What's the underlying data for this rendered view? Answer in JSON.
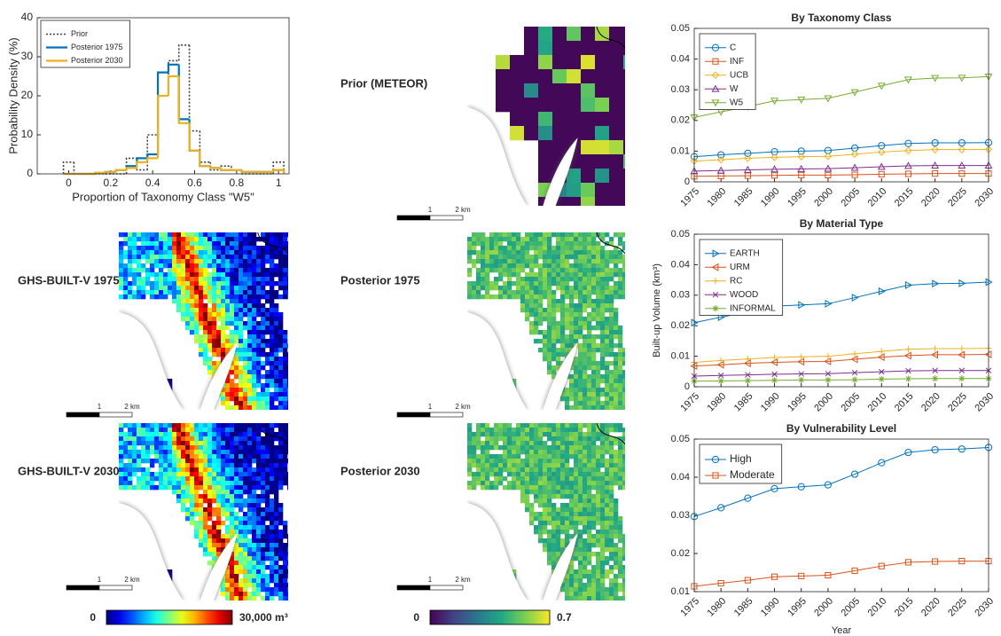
{
  "chart_data": [
    {
      "type": "histogram",
      "ylabel": "Probability Density (%)",
      "xlabel": "Proportion of Taxonomy Class \"W5\"",
      "bins": [
        -0.025,
        0.025,
        0.075,
        0.125,
        0.175,
        0.225,
        0.275,
        0.325,
        0.375,
        0.425,
        0.475,
        0.525,
        0.575,
        0.625,
        0.675,
        0.725,
        0.775,
        0.825,
        0.875,
        0.925,
        0.975,
        1.025
      ],
      "series": [
        {
          "name": "Prior",
          "color": "#404040",
          "style": "dotted",
          "values": [
            3,
            0,
            0,
            0,
            0,
            0,
            4,
            1,
            10,
            20,
            29,
            33,
            11,
            3,
            1,
            2,
            1,
            0,
            0,
            0,
            3
          ]
        },
        {
          "name": "Posterior 1975",
          "color": "#0072BD",
          "style": "solid",
          "values": [
            0,
            0,
            0,
            0.2,
            0.5,
            1,
            2,
            4,
            5,
            26,
            28,
            14,
            6,
            2,
            1.5,
            1,
            1,
            0.5,
            0.5,
            0.5,
            1
          ]
        },
        {
          "name": "Posterior 2030",
          "color": "#EDB120",
          "style": "solid",
          "values": [
            0,
            0,
            0,
            0.3,
            0.5,
            1,
            1.5,
            3,
            4,
            20,
            25,
            13,
            6,
            2,
            1.5,
            1,
            1,
            0.5,
            0.5,
            0.5,
            1
          ]
        }
      ],
      "xlim": [
        -0.15,
        1.05
      ],
      "ylim": [
        0,
        40
      ],
      "xticks": [
        0,
        0.2,
        0.4,
        0.6,
        0.8,
        1
      ],
      "yticks": [
        0,
        10,
        20,
        30,
        40
      ],
      "legend": "upper-left"
    },
    {
      "type": "line",
      "title": "By Taxonomy Class",
      "x": [
        1975,
        1980,
        1985,
        1990,
        1995,
        2000,
        2005,
        2010,
        2015,
        2020,
        2025,
        2030
      ],
      "series": [
        {
          "name": "C",
          "color": "#0072BD",
          "marker": "circle",
          "values": [
            0.0082,
            0.0088,
            0.0093,
            0.0098,
            0.01,
            0.0102,
            0.011,
            0.0118,
            0.0125,
            0.0127,
            0.0127,
            0.0128
          ]
        },
        {
          "name": "INF",
          "color": "#D95319",
          "marker": "square",
          "values": [
            0.0018,
            0.0019,
            0.002,
            0.0021,
            0.0022,
            0.0022,
            0.0023,
            0.0025,
            0.0026,
            0.0027,
            0.0027,
            0.0027
          ]
        },
        {
          "name": "UCB",
          "color": "#EDB120",
          "marker": "diamond",
          "values": [
            0.0068,
            0.0072,
            0.0077,
            0.008,
            0.0082,
            0.0083,
            0.009,
            0.0097,
            0.0102,
            0.0105,
            0.0105,
            0.0106
          ]
        },
        {
          "name": "W",
          "color": "#7E2F8E",
          "marker": "triangle-up",
          "values": [
            0.0035,
            0.0037,
            0.0039,
            0.0041,
            0.0042,
            0.0043,
            0.0046,
            0.0049,
            0.0052,
            0.0053,
            0.0053,
            0.0053
          ]
        },
        {
          "name": "W5",
          "color": "#77AC30",
          "marker": "triangle-down",
          "values": [
            0.021,
            0.0228,
            0.0245,
            0.0264,
            0.0268,
            0.0272,
            0.0292,
            0.0313,
            0.0333,
            0.0338,
            0.0339,
            0.0343
          ]
        }
      ],
      "xlim": [
        1975,
        2030
      ],
      "ylim": [
        0,
        0.05
      ],
      "xticks": [
        1975,
        1980,
        1985,
        1990,
        1995,
        2000,
        2005,
        2010,
        2015,
        2020,
        2025,
        2030
      ],
      "yticks": [
        0,
        0.01,
        0.02,
        0.03,
        0.04,
        0.05
      ],
      "legend": "upper-left"
    },
    {
      "type": "line",
      "title": "By Material Type",
      "ylabel": "Built-up Volume (km³)",
      "x": [
        1975,
        1980,
        1985,
        1990,
        1995,
        2000,
        2005,
        2010,
        2015,
        2020,
        2025,
        2030
      ],
      "series": [
        {
          "name": "EARTH",
          "color": "#0072BD",
          "marker": "triangle-right",
          "values": [
            0.021,
            0.0228,
            0.0245,
            0.0264,
            0.0268,
            0.0272,
            0.0292,
            0.0313,
            0.0333,
            0.0338,
            0.0339,
            0.0343
          ]
        },
        {
          "name": "URM",
          "color": "#D95319",
          "marker": "triangle-left",
          "values": [
            0.0068,
            0.0072,
            0.0077,
            0.008,
            0.0082,
            0.0083,
            0.009,
            0.0097,
            0.0102,
            0.0105,
            0.0105,
            0.0106
          ]
        },
        {
          "name": "RC",
          "color": "#EDB120",
          "marker": "plus",
          "values": [
            0.008,
            0.0086,
            0.0091,
            0.0096,
            0.0098,
            0.01,
            0.0108,
            0.0116,
            0.0123,
            0.0125,
            0.0125,
            0.0126
          ]
        },
        {
          "name": "WOOD",
          "color": "#7E2F8E",
          "marker": "x",
          "values": [
            0.0035,
            0.0037,
            0.0039,
            0.0041,
            0.0042,
            0.0043,
            0.0046,
            0.0049,
            0.0052,
            0.0053,
            0.0053,
            0.0053
          ]
        },
        {
          "name": "INFORMAL",
          "color": "#77AC30",
          "marker": "asterisk",
          "values": [
            0.0018,
            0.0019,
            0.002,
            0.0021,
            0.0022,
            0.0022,
            0.0023,
            0.0025,
            0.0026,
            0.0027,
            0.0027,
            0.0027
          ]
        }
      ],
      "xlim": [
        1975,
        2030
      ],
      "ylim": [
        0,
        0.05
      ],
      "xticks": [
        1975,
        1980,
        1985,
        1990,
        1995,
        2000,
        2005,
        2010,
        2015,
        2020,
        2025,
        2030
      ],
      "yticks": [
        0,
        0.01,
        0.02,
        0.03,
        0.04,
        0.05
      ],
      "legend": "upper-left"
    },
    {
      "type": "line",
      "title": "By Vulnerability Level",
      "xlabel": "Year",
      "x": [
        1975,
        1980,
        1985,
        1990,
        1995,
        2000,
        2005,
        2010,
        2015,
        2020,
        2025,
        2030
      ],
      "series": [
        {
          "name": "High",
          "color": "#0072BD",
          "marker": "circle",
          "values": [
            0.0297,
            0.032,
            0.0345,
            0.037,
            0.0375,
            0.038,
            0.0408,
            0.0438,
            0.0465,
            0.0472,
            0.0474,
            0.0478
          ]
        },
        {
          "name": "Moderate",
          "color": "#D95319",
          "marker": "square",
          "values": [
            0.0114,
            0.0122,
            0.013,
            0.0139,
            0.0141,
            0.0143,
            0.0155,
            0.0167,
            0.0177,
            0.0179,
            0.018,
            0.018
          ]
        }
      ],
      "xlim": [
        1975,
        2030
      ],
      "ylim": [
        0.01,
        0.05
      ],
      "xticks": [
        1975,
        1980,
        1985,
        1990,
        1995,
        2000,
        2005,
        2010,
        2015,
        2020,
        2025,
        2030
      ],
      "yticks": [
        0.01,
        0.02,
        0.03,
        0.04,
        0.05
      ],
      "legend": "upper-left"
    }
  ],
  "maps": [
    {
      "label": "Prior (METEOR)",
      "colormap": "viridis"
    },
    {
      "label": "GHS-BUILT-V 1975",
      "colormap": "jet"
    },
    {
      "label": "Posterior 1975",
      "colormap": "viridis"
    },
    {
      "label": "GHS-BUILT-V 2030",
      "colormap": "jet"
    },
    {
      "label": "Posterior 2030",
      "colormap": "viridis"
    }
  ],
  "scale_bar": {
    "near": "1",
    "far": "2 km"
  },
  "colorbars": [
    {
      "min": "0",
      "max": "30,000 m³",
      "colormap": "jet"
    },
    {
      "min": "0",
      "max": "0.7",
      "colormap": "viridis"
    }
  ]
}
